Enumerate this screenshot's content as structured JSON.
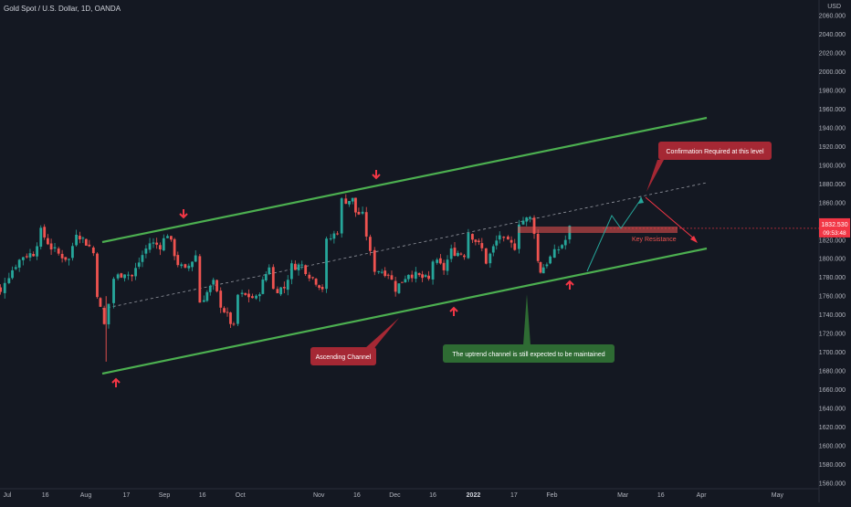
{
  "header": {
    "symbol_title": "Gold Spot / U.S. Dollar, 1D, OANDA",
    "currency": "USD"
  },
  "chart_data": {
    "type": "candlestick",
    "symbol": "Gold Spot / U.S. Dollar",
    "interval": "1D",
    "exchange": "OANDA",
    "currency": "USD",
    "ylim": [
      1555,
      2068
    ],
    "y_ticks": [
      1560,
      1580,
      1600,
      1620,
      1640,
      1660,
      1680,
      1700,
      1720,
      1740,
      1760,
      1780,
      1800,
      1820,
      1840,
      1860,
      1880,
      1900,
      1920,
      1940,
      1960,
      1980,
      2000,
      2020,
      2040,
      2060
    ],
    "x_ticks": [
      {
        "label": "Jul",
        "date": "2021-07-01"
      },
      {
        "label": "16",
        "date": "2021-07-16"
      },
      {
        "label": "Aug",
        "date": "2021-08-01"
      },
      {
        "label": "17",
        "date": "2021-08-17"
      },
      {
        "label": "Sep",
        "date": "2021-09-01"
      },
      {
        "label": "16",
        "date": "2021-09-16"
      },
      {
        "label": "Oct",
        "date": "2021-10-01"
      },
      {
        "label": "Nov",
        "date": "2021-11-01"
      },
      {
        "label": "16",
        "date": "2021-11-16"
      },
      {
        "label": "Dec",
        "date": "2021-12-01"
      },
      {
        "label": "16",
        "date": "2021-12-16"
      },
      {
        "label": "2022",
        "date": "2022-01-01"
      },
      {
        "label": "17",
        "date": "2022-01-17"
      },
      {
        "label": "Feb",
        "date": "2022-02-01"
      },
      {
        "label": "Mar",
        "date": "2022-03-01"
      },
      {
        "label": "16",
        "date": "2022-03-16"
      },
      {
        "label": "Apr",
        "date": "2022-04-01"
      },
      {
        "label": "May",
        "date": "2022-05-01"
      }
    ],
    "close_series": [
      {
        "date": "2021-06-22",
        "close": 1779
      },
      {
        "date": "2021-06-25",
        "close": 1781
      },
      {
        "date": "2021-06-29",
        "close": 1763
      },
      {
        "date": "2021-07-01",
        "close": 1777
      },
      {
        "date": "2021-07-05",
        "close": 1794
      },
      {
        "date": "2021-07-08",
        "close": 1803
      },
      {
        "date": "2021-07-12",
        "close": 1806
      },
      {
        "date": "2021-07-15",
        "close": 1829
      },
      {
        "date": "2021-07-19",
        "close": 1812
      },
      {
        "date": "2021-07-22",
        "close": 1805
      },
      {
        "date": "2021-07-26",
        "close": 1799
      },
      {
        "date": "2021-07-29",
        "close": 1829
      },
      {
        "date": "2021-08-03",
        "close": 1813
      },
      {
        "date": "2021-08-05",
        "close": 1806
      },
      {
        "date": "2021-08-06",
        "close": 1763
      },
      {
        "date": "2021-08-09",
        "close": 1729
      },
      {
        "date": "2021-08-11",
        "close": 1752
      },
      {
        "date": "2021-08-13",
        "close": 1779
      },
      {
        "date": "2021-08-17",
        "close": 1786
      },
      {
        "date": "2021-08-20",
        "close": 1781
      },
      {
        "date": "2021-08-24",
        "close": 1804
      },
      {
        "date": "2021-08-27",
        "close": 1817
      },
      {
        "date": "2021-08-31",
        "close": 1814
      },
      {
        "date": "2021-09-03",
        "close": 1827
      },
      {
        "date": "2021-09-07",
        "close": 1795
      },
      {
        "date": "2021-09-10",
        "close": 1787
      },
      {
        "date": "2021-09-14",
        "close": 1804
      },
      {
        "date": "2021-09-16",
        "close": 1754
      },
      {
        "date": "2021-09-21",
        "close": 1774
      },
      {
        "date": "2021-09-24",
        "close": 1751
      },
      {
        "date": "2021-09-29",
        "close": 1726
      },
      {
        "date": "2021-10-01",
        "close": 1761
      },
      {
        "date": "2021-10-05",
        "close": 1760
      },
      {
        "date": "2021-10-08",
        "close": 1757
      },
      {
        "date": "2021-10-13",
        "close": 1793
      },
      {
        "date": "2021-10-15",
        "close": 1767
      },
      {
        "date": "2021-10-19",
        "close": 1769
      },
      {
        "date": "2021-10-22",
        "close": 1792
      },
      {
        "date": "2021-10-26",
        "close": 1793
      },
      {
        "date": "2021-10-29",
        "close": 1783
      },
      {
        "date": "2021-11-03",
        "close": 1769
      },
      {
        "date": "2021-11-05",
        "close": 1818
      },
      {
        "date": "2021-11-09",
        "close": 1830
      },
      {
        "date": "2021-11-11",
        "close": 1862
      },
      {
        "date": "2021-11-15",
        "close": 1863
      },
      {
        "date": "2021-11-16",
        "close": 1850
      },
      {
        "date": "2021-11-19",
        "close": 1846
      },
      {
        "date": "2021-11-22",
        "close": 1805
      },
      {
        "date": "2021-11-24",
        "close": 1789
      },
      {
        "date": "2021-11-29",
        "close": 1785
      },
      {
        "date": "2021-12-02",
        "close": 1768
      },
      {
        "date": "2021-12-07",
        "close": 1785
      },
      {
        "date": "2021-12-10",
        "close": 1782
      },
      {
        "date": "2021-12-15",
        "close": 1777
      },
      {
        "date": "2021-12-17",
        "close": 1798
      },
      {
        "date": "2021-12-21",
        "close": 1789
      },
      {
        "date": "2021-12-24",
        "close": 1808
      },
      {
        "date": "2021-12-29",
        "close": 1805
      },
      {
        "date": "2021-12-31",
        "close": 1829
      },
      {
        "date": "2022-01-05",
        "close": 1810
      },
      {
        "date": "2022-01-07",
        "close": 1797
      },
      {
        "date": "2022-01-12",
        "close": 1826
      },
      {
        "date": "2022-01-14",
        "close": 1818
      },
      {
        "date": "2022-01-18",
        "close": 1813
      },
      {
        "date": "2022-01-20",
        "close": 1840
      },
      {
        "date": "2022-01-24",
        "close": 1843
      },
      {
        "date": "2022-01-26",
        "close": 1830
      },
      {
        "date": "2022-01-27",
        "close": 1797
      },
      {
        "date": "2022-01-28",
        "close": 1787
      },
      {
        "date": "2022-02-01",
        "close": 1801
      },
      {
        "date": "2022-02-03",
        "close": 1806
      },
      {
        "date": "2022-02-07",
        "close": 1820
      },
      {
        "date": "2022-02-09",
        "close": 1832.53
      }
    ],
    "current_price": {
      "label": "1832.530",
      "value": 1832.53,
      "countdown": "09:53:48"
    },
    "annotations": {
      "confirmation": "Confirmation Required at this level",
      "key_resistance": "Key Resistance",
      "ascending_channel": "Ascending Channel",
      "uptrend_note": "The uptrend channel is still expected to be maintained"
    },
    "grid": false,
    "legend": "none",
    "colors": {
      "background": "#141822",
      "up": "#26a69a",
      "down": "#ef5350",
      "channel": "#4caf50",
      "label_red": "#a52834",
      "label_green": "#2e6b33",
      "arrow_red": "#f23645",
      "price_tag": "#f23645",
      "axis_text": "#b2b5be"
    }
  }
}
